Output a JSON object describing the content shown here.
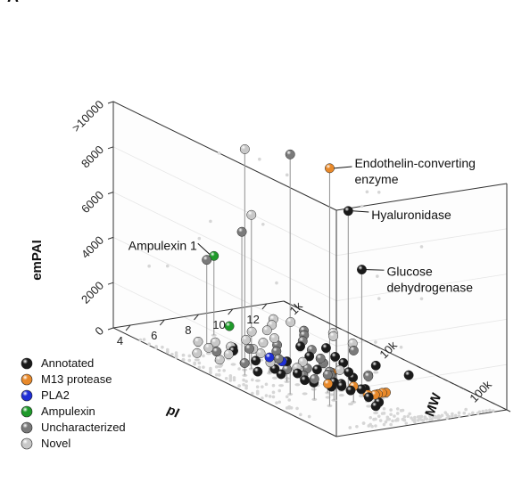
{
  "panel_label": "A",
  "chart_data": {
    "type": "scatter3d",
    "axes": {
      "x": {
        "label": "pI",
        "ticks": [
          {
            "value": 4,
            "label": "4"
          },
          {
            "value": 6,
            "label": "6"
          },
          {
            "value": 8,
            "label": "8"
          },
          {
            "value": 10,
            "label": "10"
          },
          {
            "value": 12,
            "label": "12"
          }
        ],
        "range": [
          3,
          13
        ]
      },
      "y": {
        "label": "MW",
        "scale": "log",
        "ticks": [
          {
            "value": 1000,
            "label": "1k"
          },
          {
            "value": 10000,
            "label": "10k"
          },
          {
            "value": 100000,
            "label": "100k"
          }
        ],
        "range": [
          1000,
          300000
        ]
      },
      "z": {
        "label": "emPAI",
        "ticks": [
          {
            "value": 0,
            "label": "0"
          },
          {
            "value": 2000,
            "label": "2000"
          },
          {
            "value": 4000,
            "label": "4000"
          },
          {
            "value": 6000,
            "label": "6000"
          },
          {
            "value": 8000,
            "label": "8000"
          },
          {
            "value": 10000,
            "label": ">10000"
          }
        ],
        "range": [
          0,
          10000
        ]
      }
    },
    "legend": {
      "position": "bottom-left",
      "entries": [
        {
          "name": "Annotated",
          "color": "#1a1a1a"
        },
        {
          "name": "M13 protease",
          "color": "#e8892a"
        },
        {
          "name": "PLA2",
          "color": "#1f2fd6"
        },
        {
          "name": "Ampulexin",
          "color": "#1f9a2a"
        },
        {
          "name": "Uncharacterized",
          "color": "#7a7a7a"
        },
        {
          "name": "Novel",
          "color": "#c8c8c8"
        }
      ]
    },
    "annotations": [
      {
        "text_lines": [
          "Endothelin-converting",
          "enzyme"
        ],
        "series": "M13 protease",
        "pI": 5.5,
        "MW": 85000,
        "emPAI": 10500
      },
      {
        "text_lines": [
          "Hyaluronidase"
        ],
        "series": "Annotated",
        "pI": 8.0,
        "MW": 46000,
        "emPAI": 7800
      },
      {
        "text_lines": [
          "Glucose",
          "dehydrogenase"
        ],
        "series": "Annotated",
        "pI": 8.0,
        "MW": 65000,
        "emPAI": 5500
      },
      {
        "text_lines": [
          "Ampulexin 1"
        ],
        "series": "Ampulexin",
        "pI": 6.8,
        "MW": 2500,
        "emPAI": 3500
      }
    ],
    "points": [
      {
        "series": "Uncharacterized",
        "pI": 4.8,
        "MW": 42000,
        "emPAI": 10600
      },
      {
        "series": "Novel",
        "pI": 4.5,
        "MW": 15000,
        "emPAI": 10000
      },
      {
        "series": "Novel",
        "pI": 5.4,
        "MW": 12000,
        "emPAI": 6800
      },
      {
        "series": "Uncharacterized",
        "pI": 5.5,
        "MW": 9000,
        "emPAI": 5800
      },
      {
        "series": "Uncharacterized",
        "pI": 5.3,
        "MW": 4000,
        "emPAI": 3900
      },
      {
        "series": "Annotated",
        "pI": 5.0,
        "MW": 9000,
        "emPAI": 600
      },
      {
        "series": "Annotated",
        "pI": 5.3,
        "MW": 14000,
        "emPAI": 500
      },
      {
        "series": "Annotated",
        "pI": 5.6,
        "MW": 20000,
        "emPAI": 400
      },
      {
        "series": "Annotated",
        "pI": 6.0,
        "MW": 30000,
        "emPAI": 500
      },
      {
        "series": "Annotated",
        "pI": 6.3,
        "MW": 40000,
        "emPAI": 300
      },
      {
        "series": "Annotated",
        "pI": 6.6,
        "MW": 55000,
        "emPAI": 350
      },
      {
        "series": "Annotated",
        "pI": 5.8,
        "MW": 25000,
        "emPAI": 900
      },
      {
        "series": "Annotated",
        "pI": 7.0,
        "MW": 60000,
        "emPAI": 400
      },
      {
        "series": "Annotated",
        "pI": 7.4,
        "MW": 50000,
        "emPAI": 300
      },
      {
        "series": "Annotated",
        "pI": 7.8,
        "MW": 70000,
        "emPAI": 300
      },
      {
        "series": "Annotated",
        "pI": 8.2,
        "MW": 65000,
        "emPAI": 200
      },
      {
        "series": "Annotated",
        "pI": 8.6,
        "MW": 40000,
        "emPAI": 250
      },
      {
        "series": "Annotated",
        "pI": 9.0,
        "MW": 30000,
        "emPAI": 200
      },
      {
        "series": "Annotated",
        "pI": 9.4,
        "MW": 22000,
        "emPAI": 300
      },
      {
        "series": "Annotated",
        "pI": 9.8,
        "MW": 15000,
        "emPAI": 200
      },
      {
        "series": "Annotated",
        "pI": 10.2,
        "MW": 10000,
        "emPAI": 200
      },
      {
        "series": "Annotated",
        "pI": 10.6,
        "MW": 30000,
        "emPAI": 300
      },
      {
        "series": "Annotated",
        "pI": 6.2,
        "MW": 70000,
        "emPAI": 800
      },
      {
        "series": "Annotated",
        "pI": 6.6,
        "MW": 90000,
        "emPAI": 600
      },
      {
        "series": "Annotated",
        "pI": 7.2,
        "MW": 110000,
        "emPAI": 400
      },
      {
        "series": "Annotated",
        "pI": 7.6,
        "MW": 120000,
        "emPAI": 200
      },
      {
        "series": "Annotated",
        "pI": 5.2,
        "MW": 28000,
        "emPAI": 500
      },
      {
        "series": "Annotated",
        "pI": 5.5,
        "MW": 45000,
        "emPAI": 600
      },
      {
        "series": "Annotated",
        "pI": 4.6,
        "MW": 20000,
        "emPAI": 400
      },
      {
        "series": "Annotated",
        "pI": 8.8,
        "MW": 12000,
        "emPAI": 150
      },
      {
        "series": "Annotated",
        "pI": 9.2,
        "MW": 8000,
        "emPAI": 200
      },
      {
        "series": "Annotated",
        "pI": 11.6,
        "MW": 45000,
        "emPAI": 100
      },
      {
        "series": "Annotated",
        "pI": 5.9,
        "MW": 6000,
        "emPAI": 300
      },
      {
        "series": "Annotated",
        "pI": 6.8,
        "MW": 35000,
        "emPAI": 700
      },
      {
        "series": "Annotated",
        "pI": 8.0,
        "MW": 46000,
        "emPAI": 7800
      },
      {
        "series": "Annotated",
        "pI": 8.0,
        "MW": 65000,
        "emPAI": 5500
      },
      {
        "series": "Annotated",
        "pI": 6.9,
        "MW": 150000,
        "emPAI": 300
      },
      {
        "series": "M13 protease",
        "pI": 5.5,
        "MW": 85000,
        "emPAI": 10500
      },
      {
        "series": "M13 protease",
        "pI": 7.6,
        "MW": 90000,
        "emPAI": 300
      },
      {
        "series": "M13 protease",
        "pI": 7.9,
        "MW": 95000,
        "emPAI": 300
      },
      {
        "series": "M13 protease",
        "pI": 8.2,
        "MW": 90000,
        "emPAI": 250
      },
      {
        "series": "M13 protease",
        "pI": 8.5,
        "MW": 88000,
        "emPAI": 250
      },
      {
        "series": "M13 protease",
        "pI": 8.8,
        "MW": 85000,
        "emPAI": 200
      },
      {
        "series": "M13 protease",
        "pI": 6.9,
        "MW": 85000,
        "emPAI": 700
      },
      {
        "series": "M13 protease",
        "pI": 6.2,
        "MW": 60000,
        "emPAI": 600
      },
      {
        "series": "M13 protease",
        "pI": 8.0,
        "MW": 30000,
        "emPAI": 300
      },
      {
        "series": "PLA2",
        "pI": 5.8,
        "MW": 16000,
        "emPAI": 700
      },
      {
        "series": "PLA2",
        "pI": 6.4,
        "MW": 17000,
        "emPAI": 500
      },
      {
        "series": "Ampulexin",
        "pI": 6.8,
        "MW": 2500,
        "emPAI": 3500
      },
      {
        "series": "Ampulexin",
        "pI": 8.0,
        "MW": 2200,
        "emPAI": 150
      },
      {
        "series": "Uncharacterized",
        "pI": 4.6,
        "MW": 7000,
        "emPAI": 400
      },
      {
        "series": "Uncharacterized",
        "pI": 5.0,
        "MW": 12000,
        "emPAI": 300
      },
      {
        "series": "Uncharacterized",
        "pI": 5.7,
        "MW": 10000,
        "emPAI": 700
      },
      {
        "series": "Uncharacterized",
        "pI": 6.1,
        "MW": 22000,
        "emPAI": 400
      },
      {
        "series": "Uncharacterized",
        "pI": 6.5,
        "MW": 28000,
        "emPAI": 300
      },
      {
        "series": "Uncharacterized",
        "pI": 7.0,
        "MW": 12000,
        "emPAI": 250
      },
      {
        "series": "Uncharacterized",
        "pI": 7.5,
        "MW": 20000,
        "emPAI": 200
      },
      {
        "series": "Uncharacterized",
        "pI": 8.3,
        "MW": 25000,
        "emPAI": 150
      },
      {
        "series": "Uncharacterized",
        "pI": 8.7,
        "MW": 18000,
        "emPAI": 200
      },
      {
        "series": "Uncharacterized",
        "pI": 9.1,
        "MW": 14000,
        "emPAI": 150
      },
      {
        "series": "Uncharacterized",
        "pI": 9.6,
        "MW": 9000,
        "emPAI": 100
      },
      {
        "series": "Uncharacterized",
        "pI": 10.0,
        "MW": 6000,
        "emPAI": 100
      },
      {
        "series": "Uncharacterized",
        "pI": 10.5,
        "MW": 5000,
        "emPAI": 150
      },
      {
        "series": "Uncharacterized",
        "pI": 11.0,
        "MW": 4000,
        "emPAI": 100
      },
      {
        "series": "Uncharacterized",
        "pI": 11.4,
        "MW": 12000,
        "emPAI": 100
      },
      {
        "series": "Uncharacterized",
        "pI": 6.6,
        "MW": 50000,
        "emPAI": 800
      },
      {
        "series": "Uncharacterized",
        "pI": 7.3,
        "MW": 40000,
        "emPAI": 500
      },
      {
        "series": "Uncharacterized",
        "pI": 5.4,
        "MW": 60000,
        "emPAI": 900
      },
      {
        "series": "Uncharacterized",
        "pI": 9.5,
        "MW": 40000,
        "emPAI": 200
      },
      {
        "series": "Uncharacterized",
        "pI": 7.8,
        "MW": 8000,
        "emPAI": 150
      },
      {
        "series": "Uncharacterized",
        "pI": 8.5,
        "MW": 6000,
        "emPAI": 100
      },
      {
        "series": "Novel",
        "pI": 3.8,
        "MW": 6000,
        "emPAI": 300
      },
      {
        "series": "Novel",
        "pI": 4.2,
        "MW": 9000,
        "emPAI": 300
      },
      {
        "series": "Novel",
        "pI": 4.9,
        "MW": 5000,
        "emPAI": 250
      },
      {
        "series": "Novel",
        "pI": 5.3,
        "MW": 7000,
        "emPAI": 200
      },
      {
        "series": "Novel",
        "pI": 5.8,
        "MW": 4000,
        "emPAI": 200
      },
      {
        "series": "Novel",
        "pI": 6.2,
        "MW": 5000,
        "emPAI": 150
      },
      {
        "series": "Novel",
        "pI": 6.6,
        "MW": 9000,
        "emPAI": 300
      },
      {
        "series": "Novel",
        "pI": 7.1,
        "MW": 6000,
        "emPAI": 100
      },
      {
        "series": "Novel",
        "pI": 7.6,
        "MW": 4000,
        "emPAI": 100
      },
      {
        "series": "Novel",
        "pI": 8.1,
        "MW": 5000,
        "emPAI": 100
      },
      {
        "series": "Novel",
        "pI": 8.6,
        "MW": 3000,
        "emPAI": 100
      },
      {
        "series": "Novel",
        "pI": 9.0,
        "MW": 4500,
        "emPAI": 100
      },
      {
        "series": "Novel",
        "pI": 9.5,
        "MW": 3000,
        "emPAI": 50
      },
      {
        "series": "Novel",
        "pI": 10.2,
        "MW": 2500,
        "emPAI": 50
      },
      {
        "series": "Novel",
        "pI": 10.8,
        "MW": 2000,
        "emPAI": 50
      },
      {
        "series": "Novel",
        "pI": 11.3,
        "MW": 2500,
        "emPAI": 50
      },
      {
        "series": "Novel",
        "pI": 11.8,
        "MW": 6000,
        "emPAI": 100
      },
      {
        "series": "Novel",
        "pI": 12.0,
        "MW": 9000,
        "emPAI": 100
      },
      {
        "series": "Novel",
        "pI": 6.0,
        "MW": 15000,
        "emPAI": 400
      },
      {
        "series": "Novel",
        "pI": 6.9,
        "MW": 20000,
        "emPAI": 300
      },
      {
        "series": "Novel",
        "pI": 7.9,
        "MW": 15000,
        "emPAI": 200
      },
      {
        "series": "Novel",
        "pI": 8.9,
        "MW": 25000,
        "emPAI": 150
      },
      {
        "series": "Novel",
        "pI": 9.8,
        "MW": 35000,
        "emPAI": 100
      },
      {
        "series": "Novel",
        "pI": 5.1,
        "MW": 3500,
        "emPAI": 200
      },
      {
        "series": "Novel",
        "pI": 12.2,
        "MW": 5000,
        "emPAI": 50
      }
    ]
  }
}
